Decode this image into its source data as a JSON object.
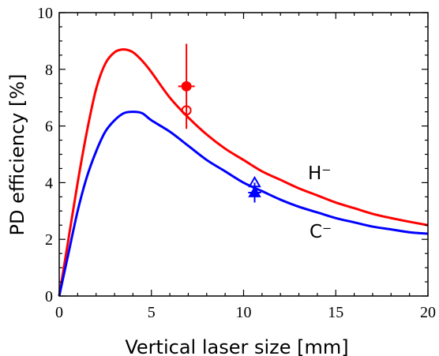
{
  "chart_data": {
    "type": "line",
    "xlabel": "Vertical laser size [mm]",
    "ylabel": "PD efficiency [%]",
    "xlim": [
      0,
      20
    ],
    "ylim": [
      0,
      10
    ],
    "xticks": [
      "0",
      "5",
      "10",
      "15",
      "20"
    ],
    "yticks": [
      "0",
      "2",
      "4",
      "6",
      "8",
      "10"
    ],
    "grid": false,
    "series": [
      {
        "name": "H⁻",
        "color": "#ff0000",
        "x": [
          0,
          0.5,
          1,
          1.5,
          2,
          2.5,
          3,
          3.5,
          4,
          4.5,
          5,
          6,
          7,
          8,
          9,
          10,
          11,
          12,
          13,
          14,
          15,
          16,
          17,
          18,
          19,
          20
        ],
        "y": [
          0,
          2.0,
          4.0,
          5.8,
          7.3,
          8.2,
          8.6,
          8.7,
          8.6,
          8.3,
          7.9,
          7.0,
          6.3,
          5.7,
          5.2,
          4.8,
          4.4,
          4.1,
          3.8,
          3.55,
          3.3,
          3.1,
          2.9,
          2.75,
          2.62,
          2.5
        ]
      },
      {
        "name": "C⁻",
        "color": "#0000ff",
        "x": [
          0,
          0.5,
          1,
          1.5,
          2,
          2.5,
          3,
          3.5,
          4,
          4.5,
          5,
          6,
          7,
          8,
          9,
          10,
          11,
          12,
          13,
          14,
          15,
          16,
          17,
          18,
          19,
          20
        ],
        "y": [
          0,
          1.5,
          3.0,
          4.2,
          5.1,
          5.8,
          6.2,
          6.45,
          6.5,
          6.45,
          6.2,
          5.8,
          5.3,
          4.8,
          4.4,
          4.0,
          3.7,
          3.4,
          3.15,
          2.95,
          2.75,
          2.6,
          2.45,
          2.35,
          2.25,
          2.2
        ]
      }
    ],
    "measurements": [
      {
        "series": "H⁻",
        "marker": "filled-circle",
        "color": "#ff0000",
        "x": 6.9,
        "y": 7.4,
        "xerr": 0.45,
        "yerr": 1.5
      },
      {
        "series": "H⁻",
        "marker": "open-circle",
        "color": "#ff0000",
        "x": 6.9,
        "y": 6.55,
        "xerr": 0,
        "yerr": 0
      },
      {
        "series": "C⁻",
        "marker": "filled-triangle",
        "color": "#0000ff",
        "x": 10.6,
        "y": 3.65,
        "xerr": 0.35,
        "yerr": 0.35
      },
      {
        "series": "C⁻",
        "marker": "open-triangle",
        "color": "#0000ff",
        "x": 10.6,
        "y": 4.0,
        "xerr": 0,
        "yerr": 0
      }
    ]
  }
}
